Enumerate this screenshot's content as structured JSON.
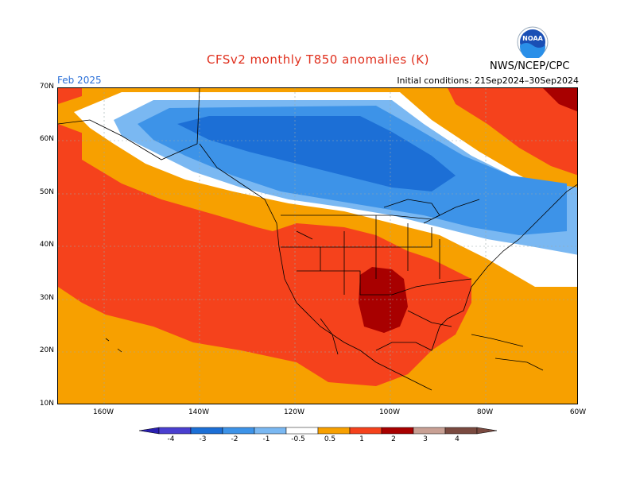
{
  "header": {
    "title": "CFSv2 monthly T850 anomalies (K)",
    "agency": "NWS/NCEP/CPC",
    "logo_text": "NOAA",
    "month": "Feb 2025",
    "initial_conditions": "Initial conditions: 21Sep2024–30Sep2024"
  },
  "axes": {
    "lat_labels": [
      "70N",
      "60N",
      "50N",
      "40N",
      "30N",
      "20N",
      "10N"
    ],
    "lon_labels": [
      "160W",
      "140W",
      "120W",
      "100W",
      "80W",
      "60W"
    ]
  },
  "colorbar": {
    "labels": [
      "-4",
      "-3",
      "-2",
      "-1",
      "-0.5",
      "0.5",
      "1",
      "2",
      "3",
      "4"
    ],
    "colors": [
      "#2a1fb0",
      "#4a3fd0",
      "#1c6fd6",
      "#3d93e8",
      "#7ab8f2",
      "#ffffff",
      "#f7a000",
      "#f5421c",
      "#a80000",
      "#c8a094",
      "#7a4a40"
    ]
  },
  "palette": {
    "ocean_orange": "#f7a000",
    "red": "#f5421c",
    "dark_red": "#a80000",
    "light_blue": "#7ab8f2",
    "mid_blue": "#3d93e8",
    "deep_blue": "#1c6fd6",
    "white": "#ffffff"
  }
}
